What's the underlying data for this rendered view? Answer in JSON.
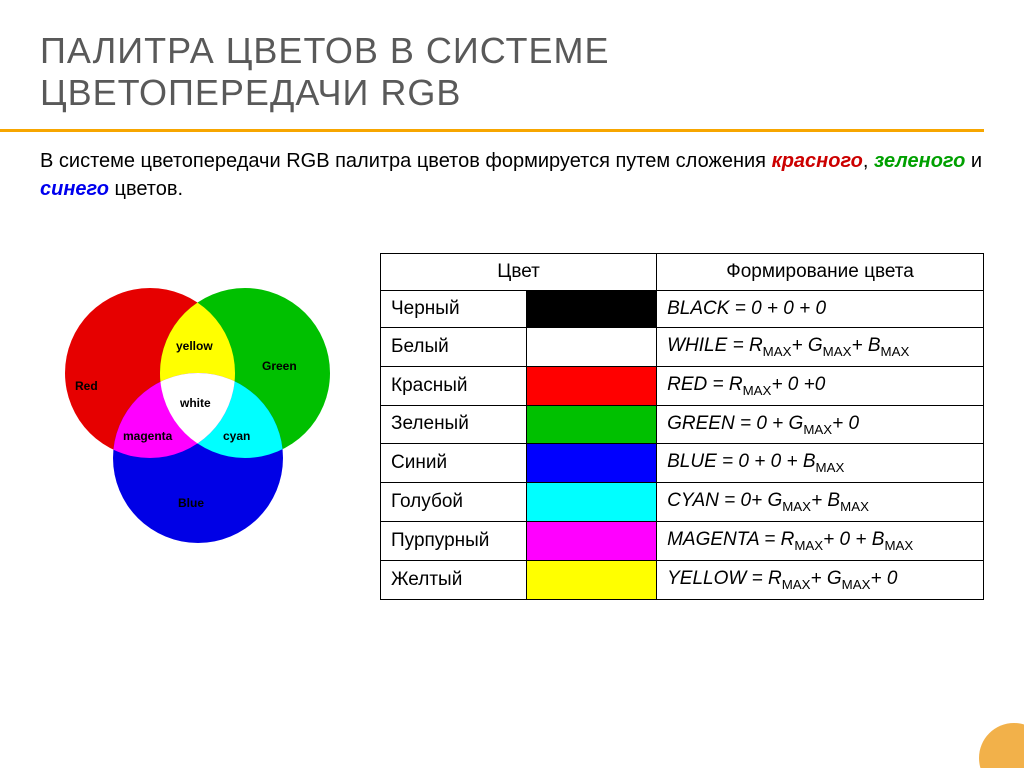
{
  "title_line1": "ПАЛИТРА ЦВЕТОВ В СИСТЕМЕ",
  "title_line2": "ЦВЕТОПЕРЕДАЧИ RGB",
  "desc_prefix": "В системе цветопередачи RGB палитра цветов формируется путем сложения ",
  "desc_red": "красного",
  "desc_mid1": ", ",
  "desc_green": "зеленого",
  "desc_mid2": " и ",
  "desc_blue": "синего",
  "desc_suffix": " цветов.",
  "venn": {
    "red": "Red",
    "green": "Green",
    "blue": "Blue",
    "yellow": "yellow",
    "cyan": "cyan",
    "magenta": "magenta",
    "white": "white",
    "colors": {
      "red": "#e60000",
      "green": "#00c000",
      "blue": "#0000e6",
      "yellow": "#ffff00",
      "cyan": "#00ffff",
      "magenta": "#ff00ff",
      "white": "#ffffff"
    }
  },
  "table": {
    "header_color": "Цвет",
    "header_form": "Формирование цвета",
    "rows": [
      {
        "name": "Черный",
        "swatch": "#000000",
        "term": "BLACK",
        "rest": " = 0 + 0 + 0"
      },
      {
        "name": "Белый",
        "swatch": "#ffffff",
        "term": "WHILE",
        "rest": " = R",
        "sub1": "MAX",
        "rest2": "+ G",
        "sub2": "MAX",
        "rest3": "+ B",
        "sub3": "MAX"
      },
      {
        "name": "Красный",
        "swatch": "#ff0000",
        "term": "RED",
        "rest": " = R",
        "sub1": "MAX",
        "rest2": "+ 0 +0"
      },
      {
        "name": "Зеленый",
        "swatch": "#00c000",
        "term": "GREEN",
        "rest": " = 0 + G",
        "sub1": "MAX",
        "rest2": "+ 0"
      },
      {
        "name": "Синий",
        "swatch": "#0000ff",
        "term": "BLUE",
        "rest": " = 0 + 0 + B",
        "sub1": "MAX"
      },
      {
        "name": "Голубой",
        "swatch": "#00ffff",
        "term": "CYAN",
        "rest": " = 0+ G",
        "sub1": "MAX",
        "rest2": "+ B",
        "sub2": "MAX"
      },
      {
        "name": "Пурпурный",
        "swatch": "#ff00ff",
        "term": "MAGENTA",
        "rest": " = R",
        "sub1": "MAX",
        "rest2": "+ 0 + B",
        "sub2": "MAX"
      },
      {
        "name": "Желтый",
        "swatch": "#ffff00",
        "term": "YELLOW",
        "rest": " = R",
        "sub1": "MAX",
        "rest2": "+ G",
        "sub2": "MAX",
        "rest3": "+ 0"
      }
    ]
  }
}
